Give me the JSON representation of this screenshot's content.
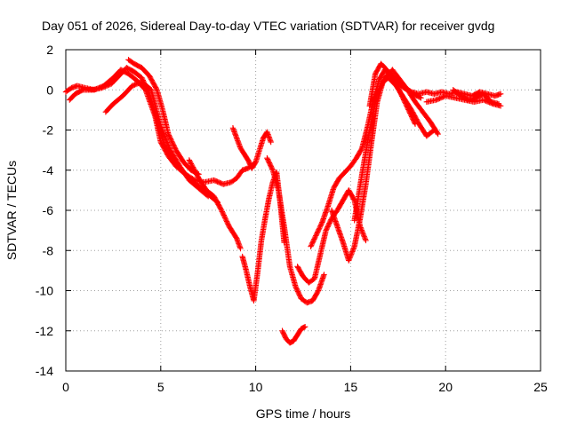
{
  "chart_data": {
    "type": "scatter",
    "title": "Day 051 of 2026, Sidereal Day-to-day VTEC variation (SDTVAR) for receiver gvdg",
    "xlabel": "GPS time / hours",
    "ylabel": "SDTVAR / TECUs",
    "xlim": [
      0,
      25
    ],
    "ylim": [
      -14,
      2
    ],
    "xticks": [
      0,
      5,
      10,
      15,
      20,
      25
    ],
    "yticks": [
      2,
      0,
      -2,
      -4,
      -6,
      -8,
      -10,
      -12,
      -14
    ],
    "grid": true,
    "marker": "+",
    "marker_color": "#ff0000",
    "series": [
      {
        "name": "trace-a",
        "x": [
          0.0,
          0.3,
          0.6,
          1.0,
          1.5,
          2.0,
          2.5,
          2.9,
          3.3,
          3.7,
          4.2,
          4.7,
          5.0,
          5.4,
          5.8,
          6.3,
          6.8,
          7.3,
          7.8,
          8.3,
          8.7,
          9.0,
          9.3,
          9.6,
          9.9
        ],
        "y": [
          -0.1,
          0.1,
          0.2,
          0.1,
          0.0,
          0.2,
          0.6,
          1.0,
          0.8,
          0.5,
          0.0,
          -1.3,
          -2.6,
          -3.3,
          -3.8,
          -4.2,
          -4.5,
          -4.6,
          -4.5,
          -4.7,
          -4.6,
          -4.4,
          -4.0,
          -3.9,
          -3.7
        ]
      },
      {
        "name": "trace-b",
        "x": [
          0.2,
          0.5,
          0.9,
          1.4,
          1.9,
          2.4,
          2.8,
          3.2,
          3.6,
          4.0,
          4.4,
          4.8,
          5.2,
          5.6,
          6.0,
          6.5,
          7.0,
          7.5,
          8.0
        ],
        "y": [
          -0.5,
          -0.2,
          0.0,
          0.0,
          0.1,
          0.3,
          0.7,
          1.1,
          0.9,
          0.6,
          -0.2,
          -1.5,
          -2.8,
          -3.4,
          -3.9,
          -4.4,
          -4.8,
          -5.2,
          -5.6
        ]
      },
      {
        "name": "trace-c",
        "x": [
          2.1,
          2.5,
          3.0,
          3.5,
          4.0,
          4.5,
          5.0,
          5.5,
          6.0,
          6.5,
          7.0,
          7.5
        ],
        "y": [
          -1.1,
          -0.7,
          -0.3,
          0.2,
          0.4,
          0.0,
          -1.8,
          -3.0,
          -3.8,
          -4.5,
          -4.9,
          -5.3
        ]
      },
      {
        "name": "trace-d",
        "x": [
          3.3,
          3.6,
          4.0,
          4.4,
          4.8,
          5.1,
          5.4,
          5.8,
          6.2,
          6.6,
          7.0
        ],
        "y": [
          1.5,
          1.3,
          1.1,
          0.7,
          0.0,
          -1.0,
          -2.2,
          -3.0,
          -3.6,
          -4.0,
          -4.2
        ]
      },
      {
        "name": "trace-e",
        "x": [
          6.5,
          7.0,
          7.4,
          7.8,
          8.2,
          8.6,
          9.0,
          9.2
        ],
        "y": [
          -3.5,
          -4.4,
          -5.0,
          -5.3,
          -6.0,
          -6.8,
          -7.4,
          -7.9
        ]
      },
      {
        "name": "trace-f",
        "x": [
          8.8,
          9.0,
          9.2,
          9.4,
          9.6,
          9.8,
          10.0,
          10.2,
          10.4,
          10.6,
          10.8
        ],
        "y": [
          -1.9,
          -2.4,
          -2.9,
          -3.2,
          -3.5,
          -3.9,
          -3.6,
          -3.0,
          -2.4,
          -2.1,
          -2.6
        ]
      },
      {
        "name": "trace-g",
        "x": [
          9.3,
          9.5,
          9.7,
          9.9,
          10.1,
          10.3,
          10.5,
          10.7,
          10.9,
          11.1,
          11.3,
          11.5
        ],
        "y": [
          -8.3,
          -9.0,
          -9.8,
          -10.5,
          -9.1,
          -7.5,
          -6.4,
          -5.4,
          -4.6,
          -4.1,
          -5.7,
          -7.6
        ]
      },
      {
        "name": "trace-h",
        "x": [
          10.6,
          10.9,
          11.2,
          11.5,
          11.8,
          12.1,
          12.4,
          12.7,
          13.0,
          13.3,
          13.6
        ],
        "y": [
          -3.4,
          -4.0,
          -5.0,
          -6.8,
          -8.8,
          -9.8,
          -10.4,
          -10.6,
          -10.5,
          -10.0,
          -9.2
        ]
      },
      {
        "name": "trace-i",
        "x": [
          11.4,
          11.6,
          11.8,
          12.0,
          12.2,
          12.4,
          12.6
        ],
        "y": [
          -12.0,
          -12.4,
          -12.6,
          -12.5,
          -12.2,
          -11.9,
          -11.8
        ]
      },
      {
        "name": "trace-j",
        "x": [
          12.2,
          12.5,
          12.8,
          13.1,
          13.4,
          13.7,
          14.0,
          14.3,
          14.6,
          14.9,
          15.2,
          15.5,
          15.8
        ],
        "y": [
          -8.8,
          -9.3,
          -9.6,
          -9.4,
          -8.2,
          -7.0,
          -6.4,
          -6.0,
          -5.5,
          -5.0,
          -5.5,
          -6.8,
          -7.5
        ]
      },
      {
        "name": "trace-k",
        "x": [
          12.9,
          13.2,
          13.5,
          13.8,
          14.1,
          14.4,
          14.7,
          15.0,
          15.3,
          15.6,
          15.9,
          16.2,
          16.5,
          16.8,
          17.1,
          17.5,
          17.9,
          18.3,
          18.7
        ],
        "y": [
          -7.8,
          -7.2,
          -6.6,
          -5.8,
          -4.9,
          -4.4,
          -4.1,
          -3.8,
          -3.4,
          -2.9,
          -1.8,
          -0.5,
          0.5,
          1.0,
          0.8,
          0.4,
          0.1,
          -0.2,
          -0.4
        ]
      },
      {
        "name": "trace-l",
        "x": [
          14.0,
          14.3,
          14.6,
          14.9,
          15.2,
          15.5,
          15.8,
          16.1,
          16.4,
          16.7,
          17.0,
          17.4,
          17.8,
          18.2,
          18.6,
          19.0,
          19.4
        ],
        "y": [
          -6.0,
          -6.8,
          -7.6,
          -8.5,
          -7.8,
          -6.4,
          -4.7,
          -2.6,
          -0.6,
          0.4,
          0.6,
          0.2,
          -0.4,
          -1.0,
          -1.7,
          -2.3,
          -2.0
        ]
      },
      {
        "name": "trace-m",
        "x": [
          15.2,
          15.6,
          16.0,
          16.4,
          16.8,
          17.2,
          17.6,
          18.0,
          18.4,
          18.8,
          19.2,
          19.6
        ],
        "y": [
          -6.5,
          -4.2,
          -2.0,
          -0.2,
          0.6,
          1.0,
          0.5,
          0.0,
          -0.6,
          -1.1,
          -1.6,
          -2.2
        ]
      },
      {
        "name": "trace-n",
        "x": [
          16.0,
          16.3,
          16.6,
          16.9,
          17.2,
          17.5,
          17.8,
          18.1,
          18.4
        ],
        "y": [
          -0.8,
          0.8,
          1.3,
          1.0,
          0.6,
          0.1,
          -0.5,
          -1.1,
          -1.7
        ]
      },
      {
        "name": "trace-o",
        "x": [
          17.4,
          17.8,
          18.2,
          18.6,
          19.0,
          19.4,
          19.8,
          20.2,
          20.6,
          21.0,
          21.4,
          21.8,
          22.2,
          22.6,
          22.9
        ],
        "y": [
          0.4,
          0.1,
          -0.1,
          -0.2,
          -0.1,
          -0.2,
          -0.1,
          -0.2,
          -0.1,
          -0.2,
          -0.3,
          -0.1,
          -0.2,
          -0.3,
          -0.2
        ]
      },
      {
        "name": "trace-p",
        "x": [
          19.0,
          19.5,
          20.0,
          20.5,
          21.0,
          21.5,
          22.0,
          22.5,
          22.9
        ],
        "y": [
          -0.6,
          -0.5,
          -0.3,
          -0.4,
          -0.5,
          -0.6,
          -0.5,
          -0.7,
          -0.8
        ]
      },
      {
        "name": "trace-q",
        "x": [
          20.4,
          20.8,
          21.2,
          21.6,
          22.0,
          22.4,
          22.8
        ],
        "y": [
          0.0,
          -0.3,
          -0.5,
          -0.4,
          -0.2,
          -0.6,
          -0.7
        ]
      }
    ]
  }
}
